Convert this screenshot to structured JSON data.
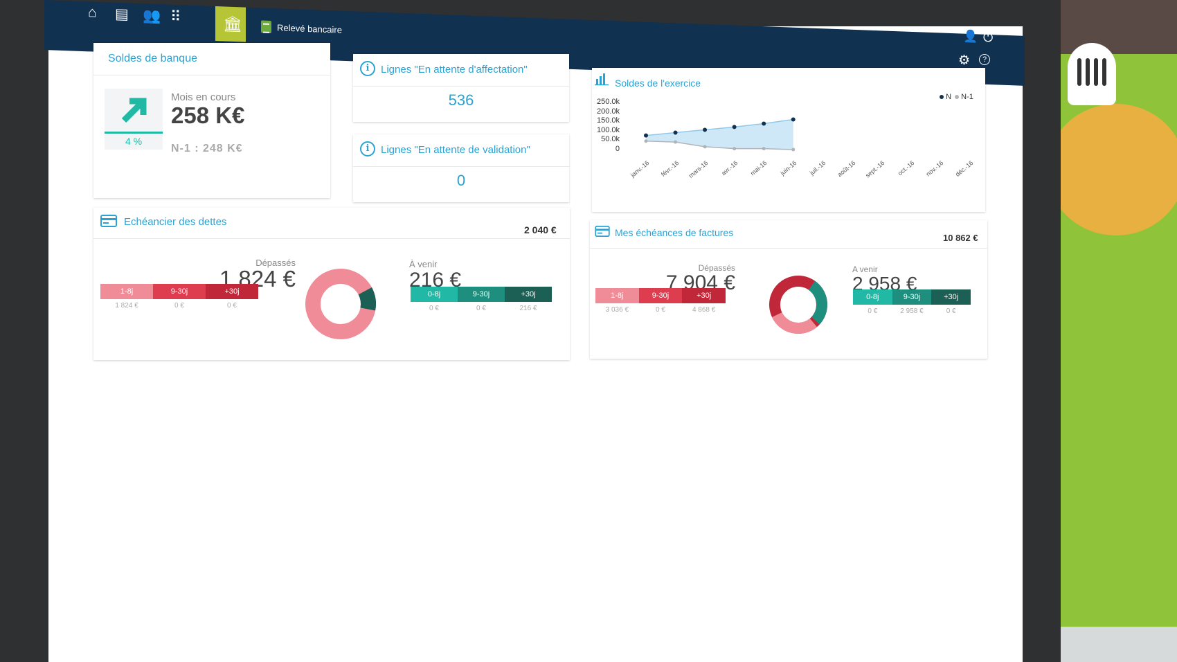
{
  "nav": {
    "icons": [
      "home-icon",
      "document-icon",
      "users-icon",
      "apps-grid-icon"
    ],
    "active_icon": "bank-icon",
    "breadcrumb": "Relevé bancaire",
    "right_icons": [
      "user-icon",
      "power-icon",
      "gear-icon",
      "help-icon"
    ]
  },
  "bank": {
    "title": "Soldes de banque",
    "trend_icon": "arrow-up-right-icon",
    "percent": "4 %",
    "month_label": "Mois en cours",
    "month_value": "258 K€",
    "previous": "N-1 : 248 K€"
  },
  "pending_assignment": {
    "title": "Lignes \"En attente d'affectation\"",
    "value": "536"
  },
  "pending_validation": {
    "title": "Lignes \"En attente de validation\"",
    "value": "0"
  },
  "balances": {
    "title": "Soldes de l'exercice",
    "legend": [
      "N",
      "N-1"
    ],
    "colors": {
      "n": "#113150",
      "n1": "#b0b4b8",
      "area": "#cfe8f7"
    }
  },
  "chart_data": {
    "type": "line",
    "title": "Soldes de l'exercice",
    "categories": [
      "janv.-16",
      "févr.-16",
      "mars-16",
      "avr.-16",
      "mai-16",
      "juin-16",
      "juil.-16",
      "août-16",
      "sept.-16",
      "oct.-16",
      "nov.-16",
      "déc.-16"
    ],
    "y_ticks": [
      "250.0k",
      "200.0k",
      "150.0k",
      "100.0k",
      "50.0k",
      "0"
    ],
    "ylim": [
      0,
      250000
    ],
    "series": [
      {
        "name": "N",
        "values": [
          75000,
          90000,
          105000,
          120000,
          138000,
          160000,
          null,
          null,
          null,
          null,
          null,
          null
        ]
      },
      {
        "name": "N-1",
        "values": [
          45000,
          40000,
          15000,
          5000,
          5000,
          0,
          null,
          null,
          null,
          null,
          null,
          null
        ]
      }
    ],
    "legend_position": "top-right"
  },
  "debts": {
    "title": "Echéancier des dettes",
    "total": "2 040 €",
    "overdue_label": "Dépassés",
    "overdue_value": "1 824 €",
    "upcoming_label": "À venir",
    "upcoming_value": "216 €",
    "overdue_buckets": [
      {
        "label": "1-8j",
        "value": "1 824 €",
        "color": "#f08b98"
      },
      {
        "label": "9-30j",
        "value": "0 €",
        "color": "#de3d50"
      },
      {
        "label": "+30j",
        "value": "0 €",
        "color": "#c0283a"
      }
    ],
    "upcoming_buckets": [
      {
        "label": "0-8j",
        "value": "0 €",
        "color": "#21b9a5"
      },
      {
        "label": "9-30j",
        "value": "0 €",
        "color": "#1e8f7e"
      },
      {
        "label": "+30j",
        "value": "216 €",
        "color": "#1c5f55"
      }
    ]
  },
  "invoices": {
    "title": "Mes échéances de factures",
    "total": "10 862 €",
    "overdue_label": "Dépassés",
    "overdue_value": "7 904 €",
    "upcoming_label": "A venir",
    "upcoming_value": "2 958 €",
    "overdue_buckets": [
      {
        "label": "1-8j",
        "value": "3 036 €",
        "color": "#f08b98"
      },
      {
        "label": "9-30j",
        "value": "0 €",
        "color": "#de3d50"
      },
      {
        "label": "+30j",
        "value": "4 868 €",
        "color": "#c0283a"
      }
    ],
    "upcoming_buckets": [
      {
        "label": "0-8j",
        "value": "0 €",
        "color": "#21b9a5"
      },
      {
        "label": "9-30j",
        "value": "2 958 €",
        "color": "#1e8f7e"
      },
      {
        "label": "+30j",
        "value": "0 €",
        "color": "#1c5f55"
      }
    ]
  }
}
